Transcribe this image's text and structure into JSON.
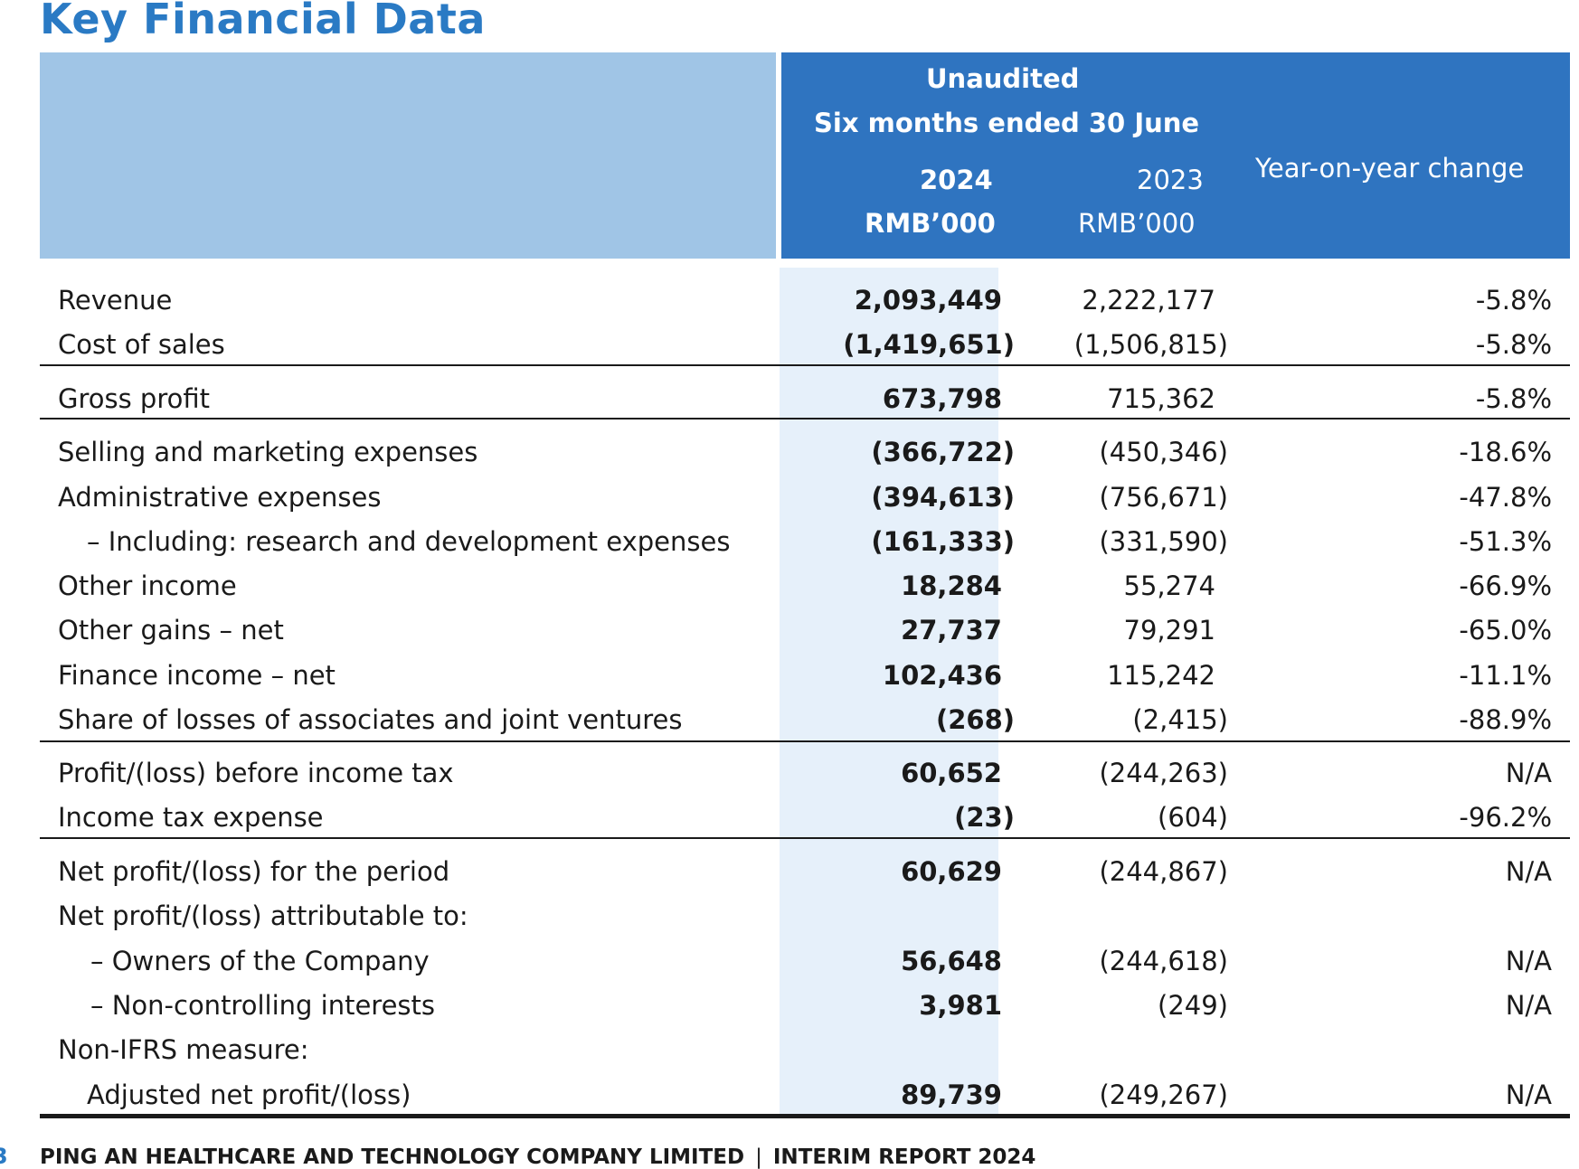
{
  "title": "Key Financial Data",
  "header": {
    "line1": "Unaudited",
    "line2": "Six months ended 30 June",
    "year_2024": "2024",
    "year_2023": "2023",
    "unit_2024": "RMB’000",
    "unit_2023": "RMB’000",
    "yoy": "Year-on-year change"
  },
  "rows": [
    {
      "label": "Revenue",
      "v2024": "2,093,449",
      "v2023": "2,222,177",
      "change": "-5.8%"
    },
    {
      "label": "Cost of sales",
      "v2024": "(1,419,651)",
      "v2023": "(1,506,815)",
      "change": "-5.8%"
    },
    {
      "label": "Gross profit",
      "v2024": "673,798",
      "v2023": "715,362",
      "change": "-5.8%"
    },
    {
      "label": "Selling and marketing expenses",
      "v2024": "(366,722)",
      "v2023": "(450,346)",
      "change": "-18.6%"
    },
    {
      "label": "Administrative expenses",
      "v2024": "(394,613)",
      "v2023": "(756,671)",
      "change": "-47.8%"
    },
    {
      "label": "– Including: research and development expenses",
      "v2024": "(161,333)",
      "v2023": "(331,590)",
      "change": "-51.3%"
    },
    {
      "label": "Other income",
      "v2024": "18,284",
      "v2023": "55,274",
      "change": "-66.9%"
    },
    {
      "label": "Other gains – net",
      "v2024": "27,737",
      "v2023": "79,291",
      "change": "-65.0%"
    },
    {
      "label": "Finance income – net",
      "v2024": "102,436",
      "v2023": "115,242",
      "change": "-11.1%"
    },
    {
      "label": "Share of losses of associates and joint ventures",
      "v2024": "(268)",
      "v2023": "(2,415)",
      "change": "-88.9%"
    },
    {
      "label": "Profit/(loss) before income tax",
      "v2024": "60,652",
      "v2023": "(244,263)",
      "change": "N/A"
    },
    {
      "label": "Income tax expense",
      "v2024": "(23)",
      "v2023": "(604)",
      "change": "-96.2%"
    },
    {
      "label": "Net profit/(loss) for the period",
      "v2024": "60,629",
      "v2023": "(244,867)",
      "change": "N/A"
    },
    {
      "label": "Net profit/(loss) attributable to:",
      "v2024": "",
      "v2023": "",
      "change": ""
    },
    {
      "label": "– Owners of the Company",
      "v2024": "56,648",
      "v2023": "(244,618)",
      "change": "N/A"
    },
    {
      "label": "– Non-controlling interests",
      "v2024": "3,981",
      "v2023": "(249)",
      "change": "N/A"
    },
    {
      "label": "Non-IFRS measure:",
      "v2024": "",
      "v2023": "",
      "change": ""
    },
    {
      "label": "Adjusted net profit/(loss)",
      "v2024": "89,739",
      "v2023": "(249,267)",
      "change": "N/A"
    }
  ],
  "footer": {
    "company": "PING AN HEALTHCARE AND TECHNOLOGY COMPANY LIMITED",
    "separator": "|",
    "report": "INTERIM REPORT 2024"
  }
}
